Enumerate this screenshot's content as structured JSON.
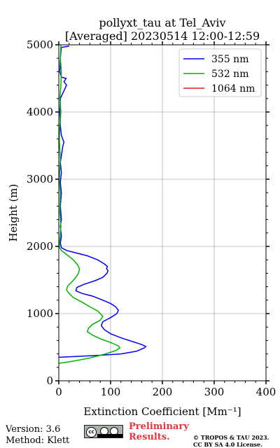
{
  "chart_data": {
    "type": "line",
    "title": "pollyxt_tau at Tel_Aviv",
    "subtitle": "[Averaged] 20230514 12:00-12:59",
    "xlabel": "Extinction Coefficient [Mm⁻¹]",
    "ylabel": "Height (m)",
    "xlim": [
      0,
      400
    ],
    "ylim": [
      0,
      5000
    ],
    "xticks": [
      0,
      100,
      200,
      300,
      400
    ],
    "yticks": [
      0,
      1000,
      2000,
      3000,
      4000,
      5000
    ],
    "grid": true,
    "legend_position": "top-right",
    "series": [
      {
        "name": "355 nm",
        "color": "#0000ff",
        "points": [
          [
            0,
            350
          ],
          [
            30,
            360
          ],
          [
            80,
            380
          ],
          [
            120,
            400
          ],
          [
            150,
            440
          ],
          [
            165,
            490
          ],
          [
            168,
            510
          ],
          [
            160,
            540
          ],
          [
            140,
            590
          ],
          [
            120,
            640
          ],
          [
            100,
            700
          ],
          [
            88,
            760
          ],
          [
            82,
            820
          ],
          [
            85,
            880
          ],
          [
            100,
            940
          ],
          [
            112,
            1000
          ],
          [
            115,
            1050
          ],
          [
            110,
            1100
          ],
          [
            100,
            1150
          ],
          [
            85,
            1200
          ],
          [
            65,
            1260
          ],
          [
            45,
            1300
          ],
          [
            33,
            1340
          ],
          [
            35,
            1390
          ],
          [
            50,
            1440
          ],
          [
            70,
            1490
          ],
          [
            85,
            1540
          ],
          [
            93,
            1600
          ],
          [
            95,
            1640
          ],
          [
            92,
            1670
          ],
          [
            94,
            1700
          ],
          [
            88,
            1740
          ],
          [
            75,
            1800
          ],
          [
            55,
            1860
          ],
          [
            35,
            1900
          ],
          [
            15,
            1940
          ],
          [
            5,
            1980
          ],
          [
            3,
            2050
          ],
          [
            5,
            2150
          ],
          [
            3,
            2300
          ],
          [
            5,
            2400
          ],
          [
            3,
            2600
          ],
          [
            5,
            2800
          ],
          [
            3,
            2950
          ],
          [
            5,
            3100
          ],
          [
            3,
            3250
          ],
          [
            6,
            3400
          ],
          [
            8,
            3500
          ],
          [
            10,
            3550
          ],
          [
            5,
            3650
          ],
          [
            3,
            3800
          ],
          [
            2,
            4000
          ],
          [
            3,
            4200
          ],
          [
            12,
            4350
          ],
          [
            15,
            4400
          ],
          [
            10,
            4450
          ],
          [
            14,
            4500
          ],
          [
            5,
            4520
          ],
          [
            2,
            4600
          ],
          [
            3,
            4800
          ],
          [
            5,
            4960
          ],
          [
            20,
            4980
          ]
        ]
      },
      {
        "name": "532 nm",
        "color": "#00b400",
        "points": [
          [
            0,
            260
          ],
          [
            25,
            290
          ],
          [
            60,
            340
          ],
          [
            90,
            400
          ],
          [
            110,
            450
          ],
          [
            118,
            490
          ],
          [
            115,
            520
          ],
          [
            100,
            570
          ],
          [
            82,
            620
          ],
          [
            65,
            680
          ],
          [
            55,
            730
          ],
          [
            57,
            780
          ],
          [
            65,
            840
          ],
          [
            80,
            900
          ],
          [
            85,
            960
          ],
          [
            75,
            1040
          ],
          [
            60,
            1100
          ],
          [
            45,
            1170
          ],
          [
            28,
            1240
          ],
          [
            20,
            1300
          ],
          [
            15,
            1350
          ],
          [
            17,
            1410
          ],
          [
            25,
            1470
          ],
          [
            33,
            1540
          ],
          [
            38,
            1600
          ],
          [
            40,
            1660
          ],
          [
            37,
            1720
          ],
          [
            28,
            1800
          ],
          [
            15,
            1880
          ],
          [
            5,
            1940
          ],
          [
            1,
            1990
          ],
          [
            2,
            2100
          ],
          [
            4,
            2300
          ],
          [
            2,
            2500
          ],
          [
            3,
            2800
          ],
          [
            1,
            3000
          ],
          [
            3,
            3300
          ],
          [
            1,
            3600
          ],
          [
            2,
            3800
          ],
          [
            4,
            4000
          ],
          [
            2,
            4200
          ],
          [
            4,
            4400
          ],
          [
            5,
            4600
          ],
          [
            3,
            4800
          ],
          [
            4,
            5000
          ]
        ]
      },
      {
        "name": "1064 nm",
        "color": "#e41a1c",
        "points": []
      }
    ]
  },
  "footer": {
    "version": "Version: 3.6",
    "method": "Method: Klett",
    "preliminary_line1": "Preliminary",
    "preliminary_line2": "Results.",
    "copyright_line1": "© TROPOS & TAU 2023.",
    "copyright_line2": "CC BY SA 4.0 License.",
    "license_badge": {
      "cc": "cc",
      "by": "BY",
      "sa": "SA"
    }
  }
}
